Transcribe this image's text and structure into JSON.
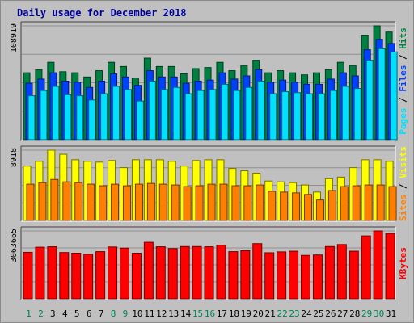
{
  "chart_data": {
    "type": "bar",
    "title": "Daily usage for December 2018",
    "categories": [
      "1",
      "2",
      "3",
      "4",
      "5",
      "6",
      "7",
      "8",
      "9",
      "10",
      "11",
      "12",
      "13",
      "14",
      "15",
      "16",
      "17",
      "18",
      "19",
      "20",
      "21",
      "22",
      "23",
      "24",
      "25",
      "26",
      "27",
      "28",
      "29",
      "30",
      "31"
    ],
    "weekend_days": [
      "1",
      "2",
      "8",
      "9",
      "15",
      "16",
      "22",
      "23",
      "29",
      "30"
    ],
    "panels": [
      {
        "id": "top",
        "axis_label": "108919",
        "ymax": 108919,
        "side_labels": [
          "Pages",
          "Files",
          "Hits"
        ],
        "series": [
          {
            "name": "Hits",
            "color": "#008040",
            "values": [
              64000,
              67000,
              74000,
              65000,
              64000,
              60000,
              66000,
              74000,
              70000,
              59000,
              78000,
              70000,
              70000,
              63000,
              68000,
              69000,
              74000,
              66000,
              71000,
              76000,
              64000,
              66000,
              64000,
              62000,
              64000,
              67000,
              74000,
              71000,
              100000,
              108919,
              103000
            ]
          },
          {
            "name": "Files",
            "color": "#0040ff",
            "values": [
              54000,
              58000,
              64000,
              56000,
              55000,
              50000,
              56000,
              63000,
              60000,
              52000,
              66000,
              60000,
              60000,
              54000,
              56000,
              57000,
              64000,
              58000,
              61000,
              67000,
              55000,
              57000,
              55000,
              53000,
              53000,
              58000,
              64000,
              61000,
              86000,
              96000,
              92000
            ]
          },
          {
            "name": "Pages",
            "color": "#00e0ff",
            "values": [
              42000,
              47000,
              51000,
              43000,
              42000,
              38000,
              44000,
              51000,
              48000,
              37000,
              56000,
              48000,
              50000,
              44000,
              47000,
              48000,
              53000,
              47000,
              50000,
              56000,
              44000,
              46000,
              45000,
              44000,
              44000,
              47000,
              51000,
              49000,
              76000,
              87000,
              84000
            ]
          }
        ]
      },
      {
        "id": "mid",
        "axis_label": "8918",
        "ymax": 8918,
        "side_labels": [
          "Sites",
          "Visits"
        ],
        "series": [
          {
            "name": "Visits",
            "color": "#ffff00",
            "values": [
              6900,
              7500,
              8918,
              8400,
              7700,
              7500,
              7400,
              7600,
              6700,
              7700,
              7700,
              7700,
              7500,
              6900,
              7600,
              7700,
              7700,
              6600,
              6300,
              6000,
              5000,
              4900,
              4800,
              4500,
              3600,
              5300,
              5500,
              6700,
              7700,
              7700,
              7500
            ]
          },
          {
            "name": "Sites",
            "color": "#ff8000",
            "values": [
              4600,
              4800,
              5200,
              4900,
              4800,
              4600,
              4400,
              4600,
              4400,
              4600,
              4700,
              4600,
              4500,
              4300,
              4400,
              4600,
              4600,
              4400,
              4400,
              4500,
              3700,
              3600,
              3500,
              3300,
              2600,
              3800,
              4300,
              4400,
              4500,
              4500,
              4300
            ]
          }
        ]
      },
      {
        "id": "bot",
        "axis_label": "3063665",
        "ymax": 3063665,
        "side_labels": [
          "KBytes"
        ],
        "series": [
          {
            "name": "KBytes",
            "color": "#ff0000",
            "values": [
              2100000,
              2330000,
              2350000,
              2090000,
              2060000,
              2010000,
              2130000,
              2340000,
              2290000,
              2060000,
              2550000,
              2350000,
              2270000,
              2360000,
              2360000,
              2350000,
              2420000,
              2130000,
              2170000,
              2490000,
              2080000,
              2120000,
              2150000,
              1960000,
              1980000,
              2360000,
              2450000,
              2150000,
              2840000,
              3063665,
              2950000
            ]
          }
        ]
      }
    ]
  }
}
